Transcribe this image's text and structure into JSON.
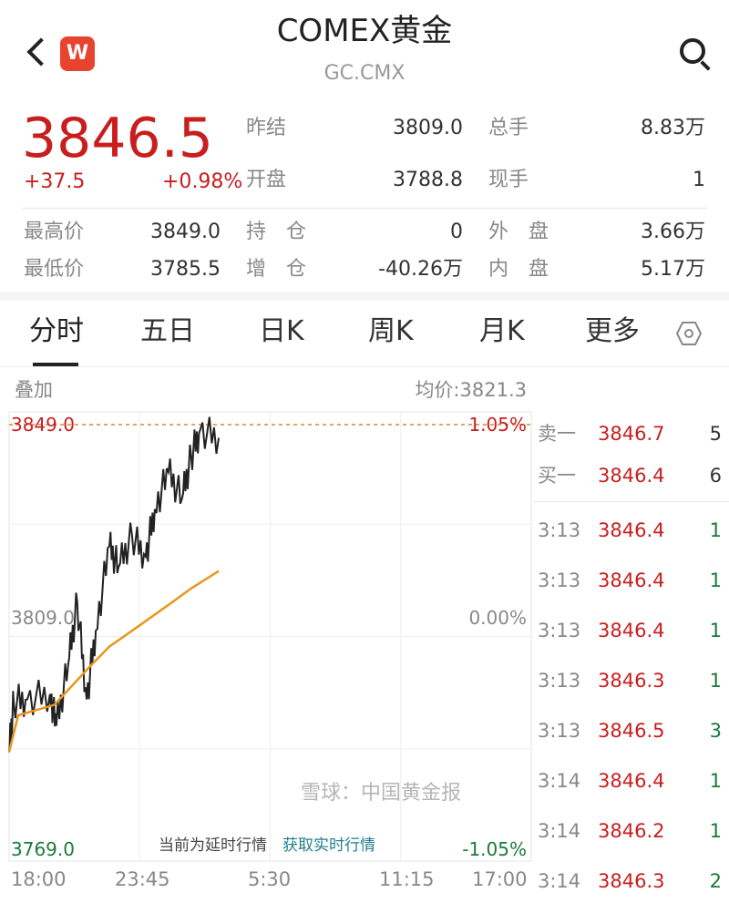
{
  "header": {
    "title": "COMEX黄金",
    "code": "GC.CMX",
    "logo": "W",
    "back_icon": "chevron-left-icon",
    "search_icon": "search-icon"
  },
  "quote": {
    "price": "3846.5",
    "change": "+37.5",
    "change_pct": "+0.98%",
    "stats": [
      {
        "label": "昨结",
        "value": "3809.0"
      },
      {
        "label": "总手",
        "value": "8.83万"
      },
      {
        "label": "开盘",
        "value": "3788.8"
      },
      {
        "label": "现手",
        "value": "1"
      },
      {
        "label": "最高价",
        "value": "3849.0"
      },
      {
        "label": "持　仓",
        "value": "0"
      },
      {
        "label": "外　盘",
        "value": "3.66万"
      },
      {
        "label": "最低价",
        "value": "3785.5"
      },
      {
        "label": "增　仓",
        "value": "-40.26万"
      },
      {
        "label": "内　盘",
        "value": "5.17万"
      }
    ]
  },
  "tabs": [
    {
      "label": "分时",
      "active": true
    },
    {
      "label": "五日"
    },
    {
      "label": "日K"
    },
    {
      "label": "周K"
    },
    {
      "label": "月K"
    },
    {
      "label": "更多"
    }
  ],
  "chart_toolbar": {
    "overlay": "叠加",
    "avg_price": "均价:3821.3"
  },
  "chart_data": {
    "type": "line",
    "ylim": [
      3769.0,
      3849.0
    ],
    "y_labels_left": [
      "3849.0",
      "3809.0",
      "3769.0"
    ],
    "y_labels_right": [
      "1.05%",
      "0.00%",
      "-1.05%"
    ],
    "x_ticks": [
      "18:00",
      "23:45",
      "5:30",
      "11:15",
      "17:00"
    ],
    "high_line": 3849.0,
    "grid": true,
    "series": [
      {
        "color": "#222222",
        "points": [
          [
            "18:00",
            3787
          ],
          [
            "18:12",
            3796.6
          ],
          [
            "18:48",
            3797
          ],
          [
            "19:48",
            3798
          ],
          [
            "20:05",
            3792
          ],
          [
            "20:36",
            3803.5
          ],
          [
            "21:00",
            3815.5
          ],
          [
            "21:25",
            3797
          ],
          [
            "21:49",
            3810
          ],
          [
            "22:25",
            3826
          ],
          [
            "22:49",
            3822
          ],
          [
            "23:25",
            3828
          ],
          [
            "00:01",
            3824
          ],
          [
            "00:25",
            3833
          ],
          [
            "01:01",
            3840
          ],
          [
            "01:37",
            3835
          ],
          [
            "02:01",
            3843
          ],
          [
            "02:25",
            3848
          ],
          [
            "03:14",
            3846.5
          ]
        ]
      },
      {
        "color": "#e8961e",
        "points": [
          [
            "18:00",
            3787
          ],
          [
            "18:24",
            3794
          ],
          [
            "20:00",
            3796
          ],
          [
            "21:37",
            3803.5
          ],
          [
            "22:25",
            3807
          ],
          [
            "23:25",
            3810
          ],
          [
            "01:13",
            3815.5
          ],
          [
            "02:01",
            3818
          ],
          [
            "03:14",
            3821.3
          ]
        ]
      }
    ]
  },
  "delay_notice": {
    "text": "当前为延时行情",
    "link": "获取实时行情"
  },
  "order_book": [
    {
      "label": "卖一",
      "price": "3846.7",
      "vol": "5"
    },
    {
      "label": "买一",
      "price": "3846.4",
      "vol": "6"
    }
  ],
  "trades": [
    {
      "time": "3:13",
      "price": "3846.4",
      "vol": "1"
    },
    {
      "time": "3:13",
      "price": "3846.4",
      "vol": "1"
    },
    {
      "time": "3:13",
      "price": "3846.4",
      "vol": "1"
    },
    {
      "time": "3:13",
      "price": "3846.3",
      "vol": "1"
    },
    {
      "time": "3:13",
      "price": "3846.5",
      "vol": "3"
    },
    {
      "time": "3:14",
      "price": "3846.4",
      "vol": "1"
    },
    {
      "time": "3:14",
      "price": "3846.2",
      "vol": "1"
    },
    {
      "time": "3:14",
      "price": "3846.3",
      "vol": "2"
    }
  ],
  "watermark": "雪球：中国黄金报"
}
